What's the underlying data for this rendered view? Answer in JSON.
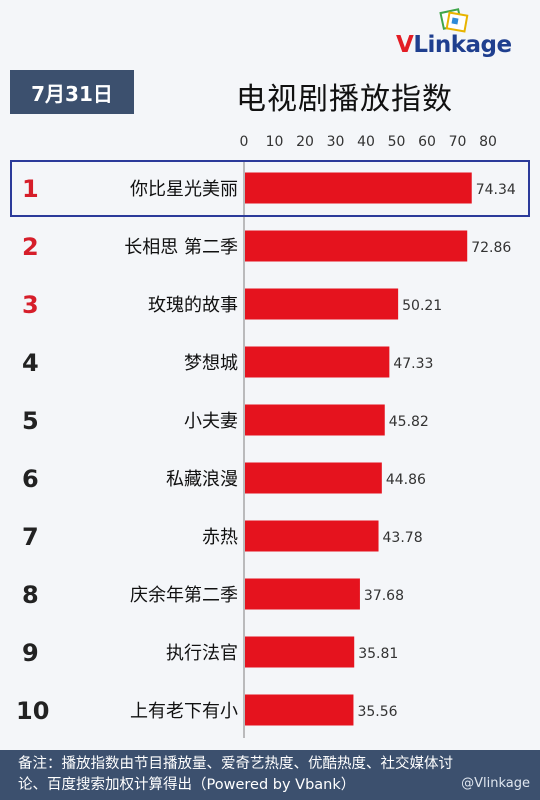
{
  "header": {
    "date": "7月31日",
    "logo_v": "V",
    "logo_rest": "Linkage"
  },
  "chart_data": {
    "type": "bar",
    "orientation": "horizontal",
    "title": "电视剧播放指数",
    "xlim": [
      0,
      80
    ],
    "ticks": [
      0,
      10,
      20,
      30,
      40,
      50,
      60,
      70,
      80
    ],
    "ranks": [
      "1",
      "2",
      "3",
      "4",
      "5",
      "6",
      "7",
      "8",
      "9",
      "10"
    ],
    "categories": [
      "你比星光美丽",
      "长相思 第二季",
      "玫瑰的故事",
      "梦想城",
      "小夫妻",
      "私藏浪漫",
      "赤热",
      "庆余年第二季",
      "执行法官",
      "上有老下有小"
    ],
    "values": [
      74.34,
      72.86,
      50.21,
      47.33,
      45.82,
      44.86,
      43.78,
      37.68,
      35.81,
      35.56
    ],
    "value_labels": [
      "74.34",
      "72.86",
      "50.21",
      "47.33",
      "45.82",
      "44.86",
      "43.78",
      "37.68",
      "35.81",
      "35.56"
    ],
    "highlighted_index": 0,
    "grid": false,
    "colors": {
      "bar": "#e5131e",
      "top_rank": "#d61e2a",
      "rank": "#222222",
      "highlight_box": "#2b3a9a"
    }
  },
  "footer": {
    "line1": "备注：播放指数由节目播放量、爱奇艺热度、优酷热度、社交媒体讨",
    "line2": "论、百度搜索加权计算得出（Powered by Vbank）"
  },
  "watermark": "@Vlinkage"
}
